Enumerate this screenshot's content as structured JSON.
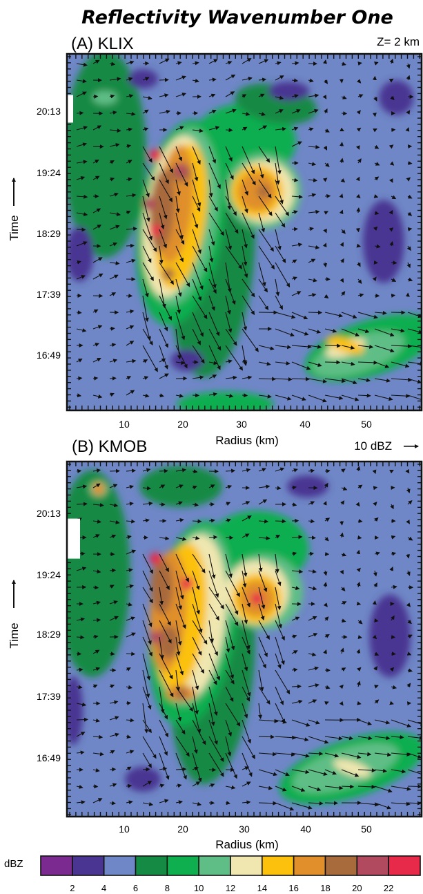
{
  "figure": {
    "title": "Reflectivity Wavenumber One",
    "height_label": "Z= 2 km",
    "vector_scale_label": "10 dBZ"
  },
  "colorbar": {
    "unit_label": "dBZ",
    "levels": [
      2,
      4,
      6,
      8,
      10,
      12,
      14,
      16,
      18,
      20,
      22
    ],
    "colors": [
      "#7b2a90",
      "#4a3592",
      "#6f87c6",
      "#158a45",
      "#0fae4f",
      "#5fbe86",
      "#efe6b0",
      "#fbc10c",
      "#e08f2b",
      "#a86b3c",
      "#b24a5f",
      "#e7294a"
    ]
  },
  "chart_data": [
    {
      "type": "heatmap",
      "panel_label": "(A) KLIX",
      "xlabel": "Radius (km)",
      "ylabel": "Time",
      "x_ticks": [
        10,
        20,
        30,
        40,
        50
      ],
      "y_ticks": [
        "16:49",
        "17:39",
        "18:29",
        "19:24",
        "20:13"
      ],
      "xlim": [
        2,
        58
      ],
      "time_range": [
        "16:05",
        "20:50"
      ],
      "features": [
        {
          "feature": "core",
          "radius_km": 16,
          "time": "19:29",
          "dbz": 22
        },
        {
          "feature": "core",
          "radius_km": 16,
          "time": "18:29",
          "dbz": 22
        },
        {
          "feature": "core",
          "radius_km": 20,
          "time": "19:17",
          "dbz": 20
        },
        {
          "feature": "core",
          "radius_km": 15,
          "time": "18:50",
          "dbz": 20
        },
        {
          "feature": "core",
          "radius_km": 18,
          "time": "17:54",
          "dbz": 18
        },
        {
          "feature": "core",
          "radius_km": 33,
          "time": "19:00",
          "dbz": 18
        },
        {
          "feature": "band",
          "radius_km": 46,
          "time": "16:57",
          "dbz": 14
        }
      ]
    },
    {
      "type": "heatmap",
      "panel_label": "(B) KMOB",
      "xlabel": "Radius (km)",
      "ylabel": "Time",
      "x_ticks": [
        10,
        20,
        30,
        40,
        50
      ],
      "y_ticks": [
        "16:49",
        "17:39",
        "18:29",
        "19:24",
        "20:13"
      ],
      "xlim": [
        2,
        58
      ],
      "time_range": [
        "16:05",
        "20:50"
      ],
      "features": [
        {
          "feature": "core",
          "radius_km": 16,
          "time": "19:32",
          "dbz": 22
        },
        {
          "feature": "core",
          "radius_km": 21,
          "time": "19:12",
          "dbz": 22
        },
        {
          "feature": "core",
          "radius_km": 32,
          "time": "19:00",
          "dbz": 22
        },
        {
          "feature": "core",
          "radius_km": 16,
          "time": "18:29",
          "dbz": 20
        },
        {
          "feature": "core",
          "radius_km": 20,
          "time": "17:44",
          "dbz": 18
        },
        {
          "feature": "core",
          "radius_km": 7,
          "time": "20:28",
          "dbz": 16
        },
        {
          "feature": "band",
          "radius_km": 47,
          "time": "16:44",
          "dbz": 12
        }
      ]
    }
  ]
}
